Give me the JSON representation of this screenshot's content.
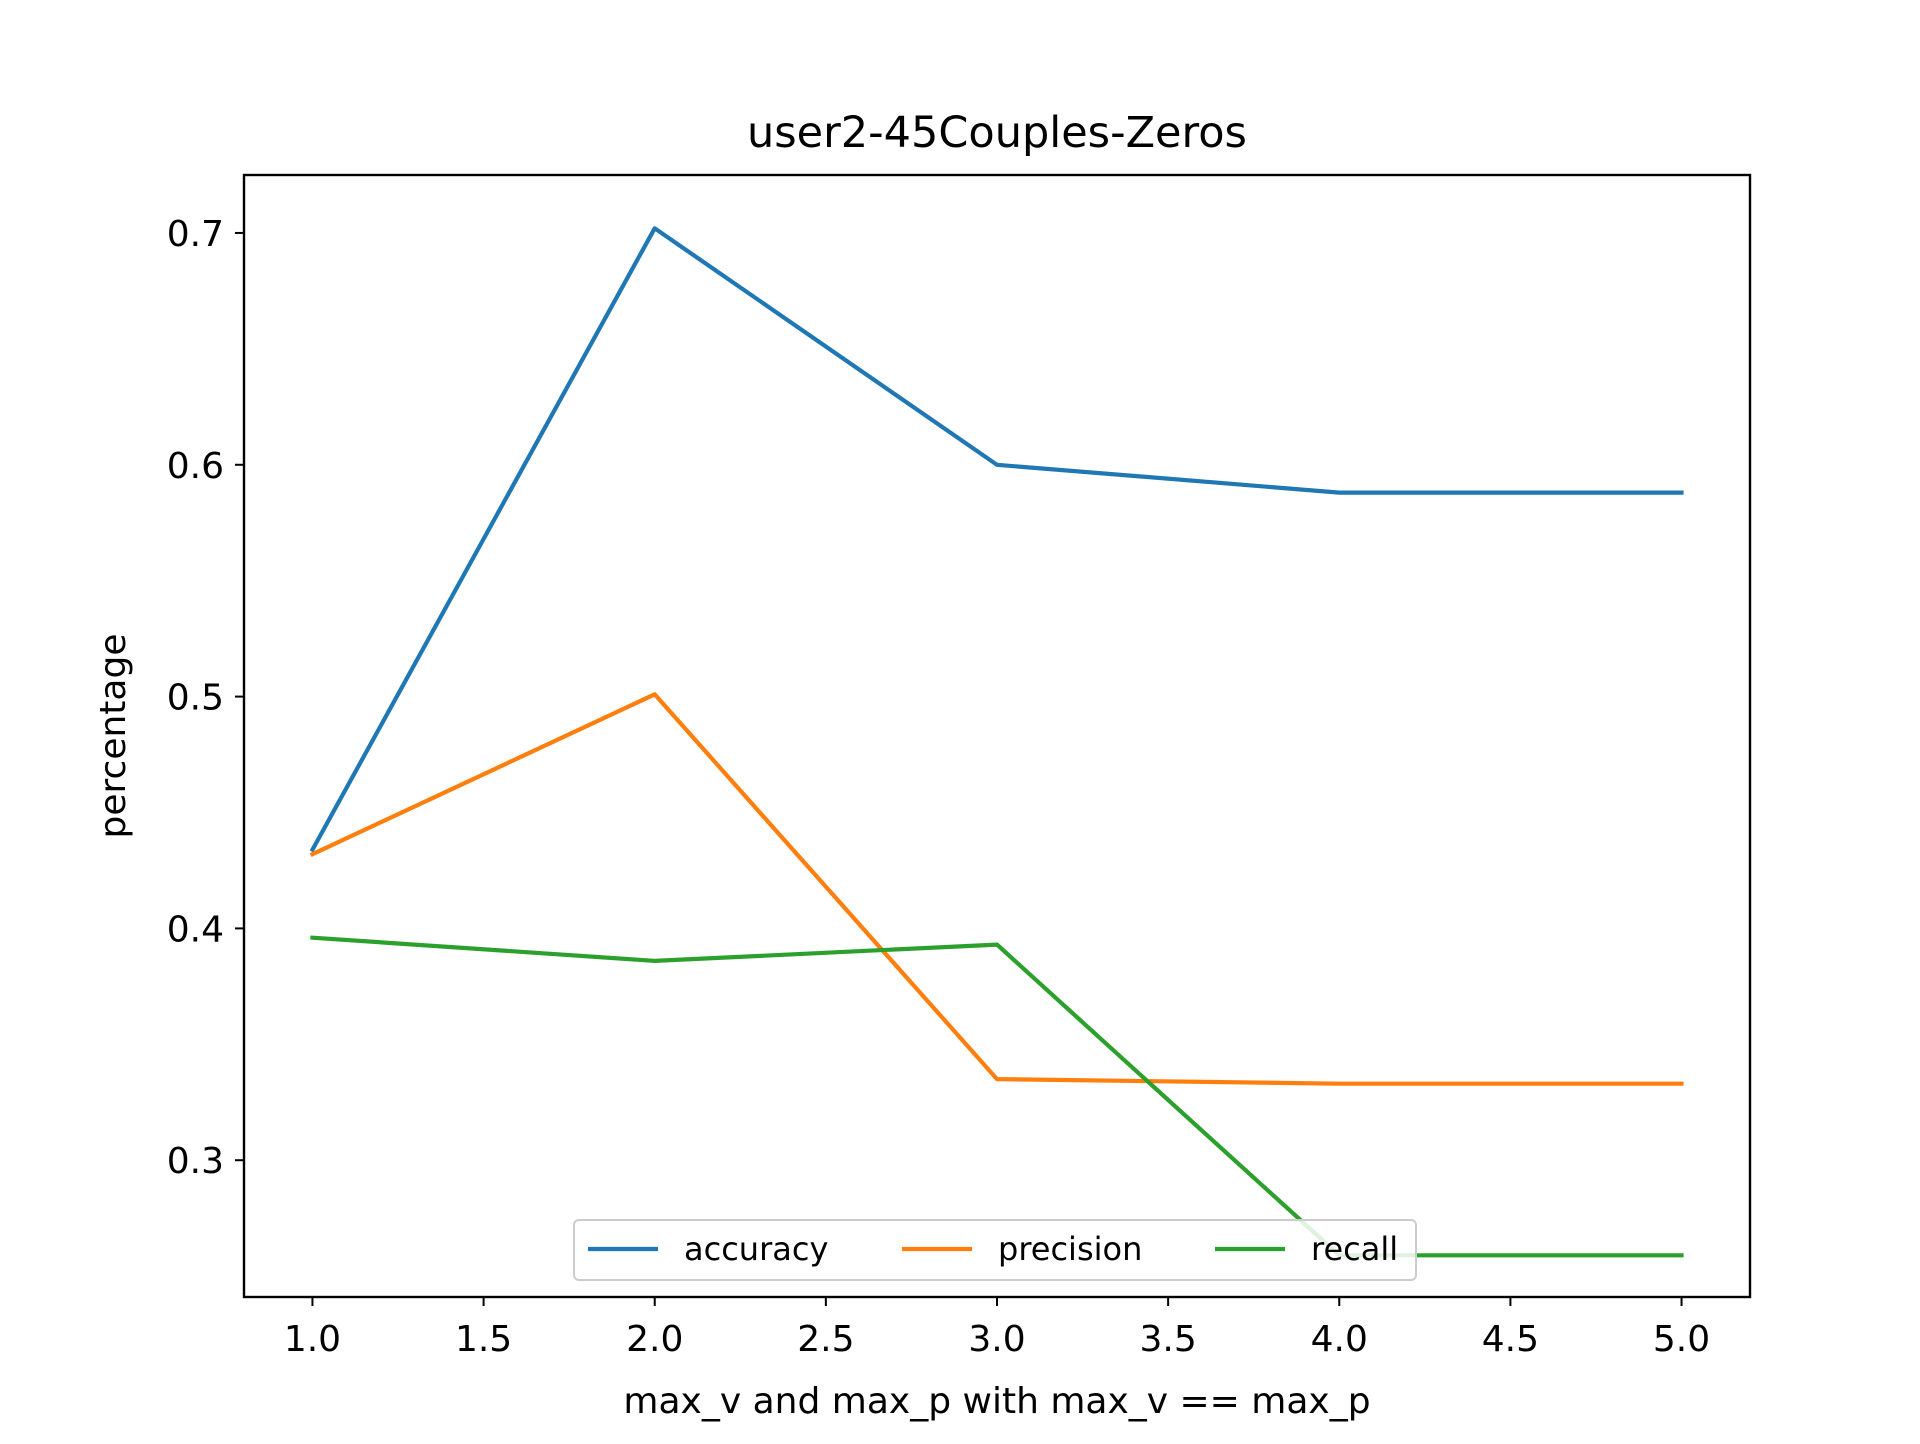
{
  "chart_data": {
    "type": "line",
    "title": "user2-45Couples-Zeros",
    "xlabel": "max_v and max_p with max_v == max_p",
    "ylabel": "percentage",
    "x": [
      1.0,
      2.0,
      3.0,
      4.0,
      5.0
    ],
    "series": [
      {
        "name": "accuracy",
        "color": "#1f77b4",
        "values": [
          0.434,
          0.702,
          0.6,
          0.588,
          0.588
        ]
      },
      {
        "name": "precision",
        "color": "#ff7f0e",
        "values": [
          0.432,
          0.501,
          0.335,
          0.333,
          0.333
        ]
      },
      {
        "name": "recall",
        "color": "#2ca02c",
        "values": [
          0.396,
          0.386,
          0.393,
          0.259,
          0.259
        ]
      }
    ],
    "xlim": [
      0.8,
      5.2
    ],
    "ylim": [
      0.241,
      0.725
    ],
    "xticks": [
      "1.0",
      "1.5",
      "2.0",
      "2.5",
      "3.0",
      "3.5",
      "4.0",
      "4.5",
      "5.0"
    ],
    "yticks": [
      "0.3",
      "0.4",
      "0.5",
      "0.6",
      "0.7"
    ],
    "grid": false,
    "legend_position": "lower-center",
    "legend_columns": 3
  }
}
